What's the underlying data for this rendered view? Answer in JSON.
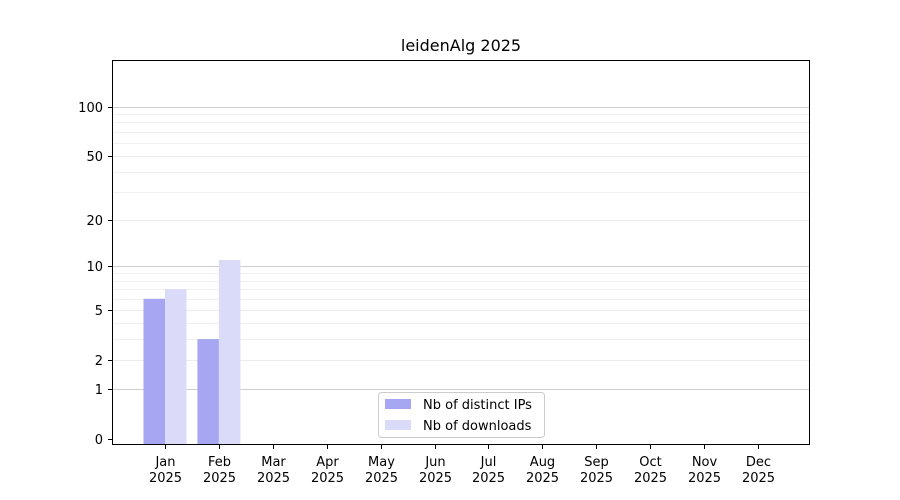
{
  "chart_data": {
    "type": "bar",
    "title": "leidenAlg 2025",
    "xlabel": "",
    "ylabel": "",
    "categories": [
      {
        "month": "Jan",
        "year": "2025"
      },
      {
        "month": "Feb",
        "year": "2025"
      },
      {
        "month": "Mar",
        "year": "2025"
      },
      {
        "month": "Apr",
        "year": "2025"
      },
      {
        "month": "May",
        "year": "2025"
      },
      {
        "month": "Jun",
        "year": "2025"
      },
      {
        "month": "Jul",
        "year": "2025"
      },
      {
        "month": "Aug",
        "year": "2025"
      },
      {
        "month": "Sep",
        "year": "2025"
      },
      {
        "month": "Oct",
        "year": "2025"
      },
      {
        "month": "Nov",
        "year": "2025"
      },
      {
        "month": "Dec",
        "year": "2025"
      }
    ],
    "series": [
      {
        "name": "Nb of distinct IPs",
        "color": "#a6a6f2",
        "values": [
          6,
          3,
          0,
          0,
          0,
          0,
          0,
          0,
          0,
          0,
          0,
          0
        ]
      },
      {
        "name": "Nb of downloads",
        "color": "#dadaf9",
        "values": [
          7,
          11,
          0,
          0,
          0,
          0,
          0,
          0,
          0,
          0,
          0,
          0
        ]
      }
    ],
    "y_scale": "log(1+y)",
    "y_ticks": [
      0,
      1,
      2,
      5,
      10,
      20,
      50,
      100
    ],
    "y_tick_labels": [
      "0",
      "1",
      "2",
      "5",
      "10",
      "20",
      "50",
      "100"
    ],
    "ylim": [
      0,
      120
    ],
    "grid": "horizontal",
    "legend_position": "lower-center"
  }
}
